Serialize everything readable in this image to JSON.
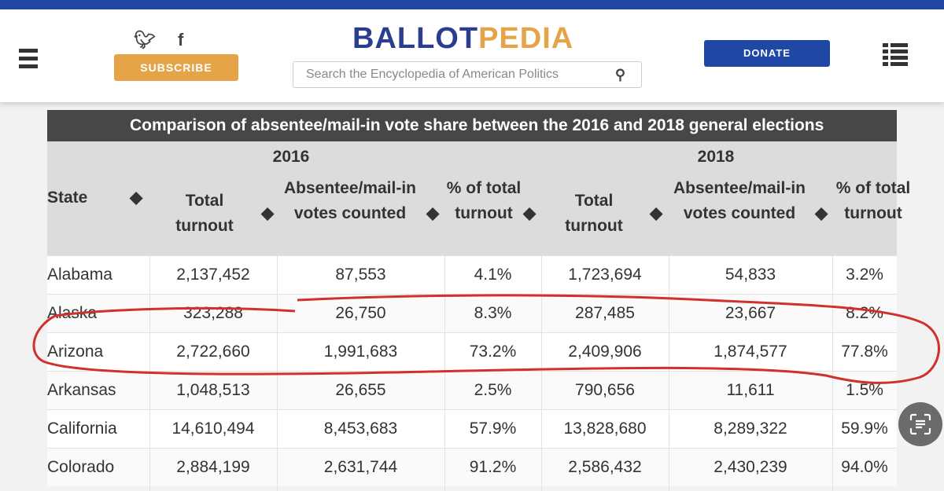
{
  "header": {
    "logo_a": "BALLOT",
    "logo_b": "PEDIA",
    "subscribe": "SUBSCRIBE",
    "donate": "DONATE",
    "search_placeholder": "Search the Encyclopedia of American Politics",
    "twitter": "𝕥",
    "facebook": "f"
  },
  "table": {
    "title": "Comparison of absentee/mail-in vote share between the 2016 and 2018 general elections",
    "year1": "2016",
    "year2": "2018",
    "col_state": "State",
    "col_total": "Total turnout",
    "col_abs": "Absentee/mail-in votes counted",
    "col_pct": "% of total turnout",
    "rows": [
      [
        "Alabama",
        "2,137,452",
        "87,553",
        "4.1%",
        "1,723,694",
        "54,833",
        "3.2%"
      ],
      [
        "Alaska",
        "323,288",
        "26,750",
        "8.3%",
        "287,485",
        "23,667",
        "8.2%"
      ],
      [
        "Arizona",
        "2,722,660",
        "1,991,683",
        "73.2%",
        "2,409,906",
        "1,874,577",
        "77.8%"
      ],
      [
        "Arkansas",
        "1,048,513",
        "26,655",
        "2.5%",
        "790,656",
        "11,611",
        "1.5%"
      ],
      [
        "California",
        "14,610,494",
        "8,453,683",
        "57.9%",
        "13,828,680",
        "8,289,322",
        "59.9%"
      ],
      [
        "Colorado",
        "2,884,199",
        "2,631,744",
        "91.2%",
        "2,586,432",
        "2,430,239",
        "94.0%"
      ]
    ]
  },
  "colors": {
    "brand_blue": "#1f47a6",
    "brand_gold": "#e6a448",
    "annotation": "#d0312d"
  }
}
